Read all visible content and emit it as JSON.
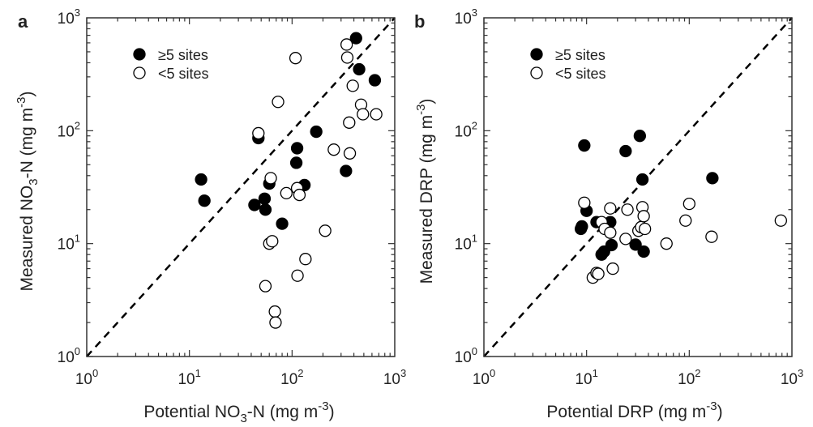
{
  "chart_data": [
    {
      "panel": "a",
      "type": "scatter",
      "scale": "log",
      "xlim": [
        1,
        1000
      ],
      "ylim": [
        1,
        1000
      ],
      "x_ticks": [
        {
          "base": "10",
          "exp": "0"
        },
        {
          "base": "10",
          "exp": "1"
        },
        {
          "base": "10",
          "exp": "2"
        },
        {
          "base": "10",
          "exp": "3"
        }
      ],
      "y_ticks": [
        {
          "base": "10",
          "exp": "0"
        },
        {
          "base": "10",
          "exp": "1"
        },
        {
          "base": "10",
          "exp": "2"
        },
        {
          "base": "10",
          "exp": "3"
        }
      ],
      "xlabel": {
        "pre": "Potential NO",
        "sub": "3",
        "mid": "-N (mg m",
        "sup": "-3",
        "post": ")"
      },
      "ylabel": {
        "pre": "Measured NO",
        "sub": "3",
        "mid": "-N (mg m",
        "sup": "-3",
        "post": ")"
      },
      "reference_line": "1:1 dashed",
      "legend_position": "top-left",
      "series": [
        {
          "name": "≥5 sites",
          "marker": "filled-circle",
          "color": "#000000",
          "points": [
            [
              13,
              37
            ],
            [
              14,
              24
            ],
            [
              43,
              22
            ],
            [
              47,
              86
            ],
            [
              54,
              25
            ],
            [
              55,
              20
            ],
            [
              60,
              34
            ],
            [
              80,
              15
            ],
            [
              110,
              52
            ],
            [
              112,
              70
            ],
            [
              132,
              33
            ],
            [
              172,
              98
            ],
            [
              335,
              44
            ],
            [
              420,
              660
            ],
            [
              450,
              350
            ],
            [
              640,
              280
            ]
          ]
        },
        {
          "name": "<5 sites",
          "marker": "open-circle",
          "color": "#000000",
          "points": [
            [
              47,
              95
            ],
            [
              55,
              4.2
            ],
            [
              60,
              10
            ],
            [
              62,
              38
            ],
            [
              64,
              10.5
            ],
            [
              68,
              2.5
            ],
            [
              69,
              2
            ],
            [
              73,
              180
            ],
            [
              88,
              28
            ],
            [
              108,
              440
            ],
            [
              112,
              31
            ],
            [
              113,
              5.2
            ],
            [
              118,
              27
            ],
            [
              135,
              7.3
            ],
            [
              210,
              13
            ],
            [
              255,
              68
            ],
            [
              340,
              580
            ],
            [
              345,
              445
            ],
            [
              360,
              118
            ],
            [
              365,
              63
            ],
            [
              390,
              250
            ],
            [
              470,
              170
            ],
            [
              490,
              140
            ],
            [
              660,
              140
            ]
          ]
        }
      ]
    },
    {
      "panel": "b",
      "type": "scatter",
      "scale": "log",
      "xlim": [
        1,
        1000
      ],
      "ylim": [
        1,
        1000
      ],
      "x_ticks": [
        {
          "base": "10",
          "exp": "0"
        },
        {
          "base": "10",
          "exp": "1"
        },
        {
          "base": "10",
          "exp": "2"
        },
        {
          "base": "10",
          "exp": "3"
        }
      ],
      "y_ticks": [
        {
          "base": "10",
          "exp": "0"
        },
        {
          "base": "10",
          "exp": "1"
        },
        {
          "base": "10",
          "exp": "2"
        },
        {
          "base": "10",
          "exp": "3"
        }
      ],
      "xlabel": {
        "pre": "Potential DRP (mg m",
        "sub": "",
        "mid": "",
        "sup": "-3",
        "post": ")"
      },
      "ylabel": {
        "pre": "Measured DRP (mg m",
        "sub": "",
        "mid": "",
        "sup": "-3",
        "post": ")"
      },
      "reference_line": "1:1 dashed",
      "legend_position": "top-left",
      "series": [
        {
          "name": "≥5 sites",
          "marker": "filled-circle",
          "color": "#000000",
          "points": [
            [
              8.8,
              13.5
            ],
            [
              9,
              14.2
            ],
            [
              9.5,
              74
            ],
            [
              10,
              19.5
            ],
            [
              12.5,
              15.5
            ],
            [
              14,
              8
            ],
            [
              14.8,
              8.5
            ],
            [
              16,
              13.8
            ],
            [
              17,
              15.5
            ],
            [
              17.5,
              9.7
            ],
            [
              24,
              66
            ],
            [
              30,
              9.8
            ],
            [
              33,
              90
            ],
            [
              35,
              37
            ],
            [
              36,
              8.5
            ],
            [
              168,
              38
            ]
          ]
        },
        {
          "name": "<5 sites",
          "marker": "open-circle",
          "color": "#000000",
          "points": [
            [
              9.5,
              23
            ],
            [
              11.5,
              5
            ],
            [
              12.5,
              5.5
            ],
            [
              13,
              5.4
            ],
            [
              14,
              15.5
            ],
            [
              15,
              13.5
            ],
            [
              17,
              20.5
            ],
            [
              17,
              12.5
            ],
            [
              18,
              6
            ],
            [
              24,
              11
            ],
            [
              25,
              20
            ],
            [
              32,
              13
            ],
            [
              34,
              14
            ],
            [
              35,
              21
            ],
            [
              36,
              17.5
            ],
            [
              37,
              13.5
            ],
            [
              60,
              10
            ],
            [
              92,
              16
            ],
            [
              100,
              22.5
            ],
            [
              165,
              11.5
            ],
            [
              780,
              16
            ]
          ]
        }
      ]
    }
  ]
}
